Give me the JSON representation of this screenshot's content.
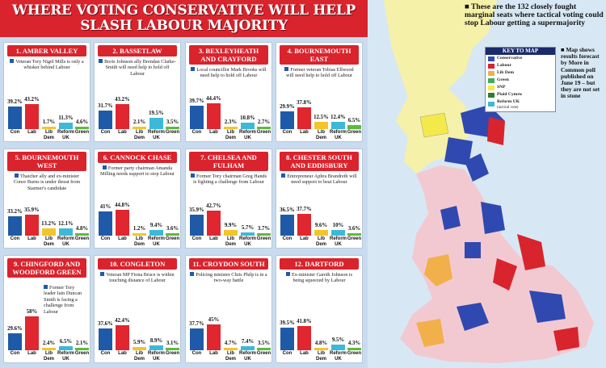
{
  "banner": {
    "title": "WHERE VOTING CONSERVATIVE WILL HELP SLASH LABOUR MAJORITY"
  },
  "party_labels": [
    "Con",
    "Lab",
    "Lib Dem",
    "Reform UK",
    "Green"
  ],
  "party_colors": [
    "#1f5aa8",
    "#e0262f",
    "#f2c62a",
    "#3cb9d8",
    "#5dbb3a"
  ],
  "chart_data": [
    {
      "type": "bar",
      "title": "1. Amber Valley",
      "subtitle": "Veteran Tory Nigel Mills is only a whisker behind Labour",
      "categories": [
        "Con",
        "Lab",
        "Lib Dem",
        "Reform UK",
        "Green"
      ],
      "values": [
        39.2,
        43.2,
        1.7,
        11.3,
        4.6
      ],
      "labels": [
        "39.2%",
        "43.2%",
        "1.7%",
        "11.3%",
        "4.6%"
      ],
      "unit": "%"
    },
    {
      "type": "bar",
      "title": "2. Bassetlaw",
      "subtitle": "Boris Johnson ally Brendan Clarke-Smith will need help to hold off Labour",
      "categories": [
        "Con",
        "Lab",
        "Lib Dem",
        "Reform UK",
        "Green"
      ],
      "values": [
        31.7,
        43.2,
        2.1,
        19.5,
        3.5
      ],
      "labels": [
        "31.7%",
        "43.2%",
        "2.1%",
        "19.5%",
        "3.5%"
      ],
      "unit": "%"
    },
    {
      "type": "bar",
      "title": "3. Bexleyheath and Crayford",
      "subtitle": "Local councillor Mark Brooks will need help to hold off Labour",
      "categories": [
        "Con",
        "Lab",
        "Lib Dem",
        "Reform UK",
        "Green"
      ],
      "values": [
        39.7,
        44.4,
        2.3,
        10.8,
        2.7
      ],
      "labels": [
        "39.7%",
        "44.4%",
        "2.3%",
        "10.8%",
        "2.7%"
      ],
      "unit": "%"
    },
    {
      "type": "bar",
      "title": "4. Bournemouth East",
      "subtitle": "Former veteran Tobias Ellwood will need help to hold off Labour",
      "categories": [
        "Con",
        "Lab",
        "Lib Dem",
        "Reform UK",
        "Green"
      ],
      "values": [
        29.9,
        37.8,
        12.5,
        12.4,
        6.5
      ],
      "labels": [
        "29.9%",
        "37.8%",
        "12.5%",
        "12.4%",
        "6.5%"
      ],
      "unit": "%"
    },
    {
      "type": "bar",
      "title": "5. Bournemouth West",
      "subtitle": "Thatcher ally and ex-minister Conor Burns is under threat from Starmer's candidate",
      "categories": [
        "Con",
        "Lab",
        "Lib Dem",
        "Reform UK",
        "Green"
      ],
      "values": [
        33.2,
        35.9,
        13.2,
        12.1,
        4.8
      ],
      "labels": [
        "33.2%",
        "35.9%",
        "13.2%",
        "12.1%",
        "4.8%"
      ],
      "unit": "%"
    },
    {
      "type": "bar",
      "title": "6. Cannock Chase",
      "subtitle": "Former party chairman Amanda Milling needs support to stop Labour",
      "categories": [
        "Con",
        "Lab",
        "Lib Dem",
        "Reform UK",
        "Green"
      ],
      "values": [
        41,
        44.8,
        1.2,
        9.4,
        3.6
      ],
      "labels": [
        "41%",
        "44.8%",
        "1.2%",
        "9.4%",
        "3.6%"
      ],
      "unit": "%"
    },
    {
      "type": "bar",
      "title": "7. Chelsea and Fulham",
      "subtitle": "Former Tory chairman Greg Hands is fighting a challenge from Labour",
      "categories": [
        "Con",
        "Lab",
        "Lib Dem",
        "Reform UK",
        "Green"
      ],
      "values": [
        35.9,
        42.7,
        9.9,
        5.7,
        3.7
      ],
      "labels": [
        "35.9%",
        "42.7%",
        "9.9%",
        "5.7%",
        "3.7%"
      ],
      "unit": "%"
    },
    {
      "type": "bar",
      "title": "8. Chester South and Eddisbury",
      "subtitle": "Entrepreneur Aphra Brandreth will need support to beat Labour",
      "categories": [
        "Con",
        "Lab",
        "Lib Dem",
        "Reform UK",
        "Green"
      ],
      "values": [
        36.5,
        37.7,
        9.6,
        10,
        3.6
      ],
      "labels": [
        "36.5%",
        "37.7%",
        "9.6%",
        "10%",
        "3.6%"
      ],
      "unit": "%"
    },
    {
      "type": "bar",
      "title": "9. Chingford and Woodford Green",
      "subtitle": "Former Tory leader Iain Duncan Smith is facing a challenge from Labour",
      "categories": [
        "Con",
        "Lab",
        "Lib Dem",
        "Reform UK",
        "Green"
      ],
      "values": [
        29.6,
        58,
        2.4,
        6.5,
        2.1
      ],
      "labels": [
        "29.6%",
        "58%",
        "2.4%",
        "6.5%",
        "2.1%"
      ],
      "unit": "%"
    },
    {
      "type": "bar",
      "title": "10. Congleton",
      "subtitle": "Veteran MP Fiona Bruce is within touching distance of Labour",
      "categories": [
        "Con",
        "Lab",
        "Lib Dem",
        "Reform UK",
        "Green"
      ],
      "values": [
        37.6,
        42.4,
        5.9,
        8.9,
        3.1
      ],
      "labels": [
        "37.6%",
        "42.4%",
        "5.9%",
        "8.9%",
        "3.1%"
      ],
      "unit": "%"
    },
    {
      "type": "bar",
      "title": "11. Croydon South",
      "subtitle": "Policing minister Chris Philp is in a two-way battle",
      "categories": [
        "Con",
        "Lab",
        "Lib Dem",
        "Reform UK",
        "Green"
      ],
      "values": [
        37.7,
        45,
        4.7,
        7.4,
        3.5
      ],
      "labels": [
        "37.7%",
        "45%",
        "4.7%",
        "7.4%",
        "3.5%"
      ],
      "unit": "%"
    },
    {
      "type": "bar",
      "title": "12. Dartford",
      "subtitle": "Ex-minister Gareth Johnson is being squeezed by Labour",
      "categories": [
        "Con",
        "Lab",
        "Lib Dem",
        "Reform UK",
        "Green"
      ],
      "values": [
        39.5,
        41.8,
        4.8,
        9.5,
        4.3
      ],
      "labels": [
        "39.5%",
        "41.8%",
        "4.8%",
        "9.5%",
        "4.3%"
      ],
      "unit": "%"
    }
  ],
  "map": {
    "headline": "These are the 132 closely fought marginal seats where tactical voting could stop Labour getting a supermajority",
    "key_title": "KEY TO MAP",
    "key": [
      {
        "label": "Conservative",
        "color": "#2f4fb0"
      },
      {
        "label": "Labour",
        "color": "#d8242c"
      },
      {
        "label": "Lib Dem",
        "color": "#f2b04a"
      },
      {
        "label": "Green",
        "color": "#3fae5a"
      },
      {
        "label": "SNP",
        "color": "#f4e94a"
      },
      {
        "label": "Plaid Cymru",
        "color": "#2e7d32"
      },
      {
        "label": "Reform UK",
        "note": "(tactical vote)",
        "color": "#3cb9d8"
      }
    ],
    "note": "Map shows results forecast by More in Common poll published on June 19 – but they are not set in stone"
  }
}
